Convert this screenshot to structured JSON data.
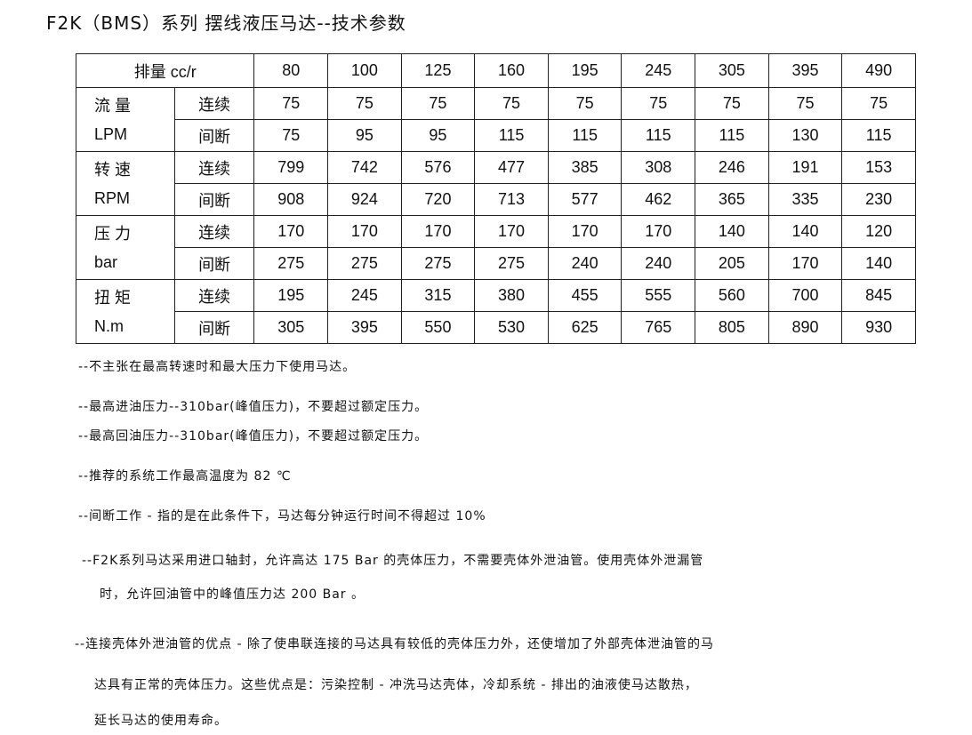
{
  "title": "F2K（BMS）系列 摆线液压马达--技术参数",
  "table": {
    "header_label": "排量 cc/r",
    "displacements": [
      "80",
      "100",
      "125",
      "160",
      "195",
      "245",
      "305",
      "395",
      "490"
    ],
    "groups": [
      {
        "name": "流 量",
        "unit": "LPM",
        "rows": [
          {
            "label": "连续",
            "values": [
              "75",
              "75",
              "75",
              "75",
              "75",
              "75",
              "75",
              "75",
              "75"
            ]
          },
          {
            "label": "间断",
            "values": [
              "75",
              "95",
              "95",
              "115",
              "115",
              "115",
              "115",
              "130",
              "115"
            ]
          }
        ]
      },
      {
        "name": "转 速",
        "unit": "RPM",
        "rows": [
          {
            "label": "连续",
            "values": [
              "799",
              "742",
              "576",
              "477",
              "385",
              "308",
              "246",
              "191",
              "153"
            ]
          },
          {
            "label": "间断",
            "values": [
              "908",
              "924",
              "720",
              "713",
              "577",
              "462",
              "365",
              "335",
              "230"
            ]
          }
        ]
      },
      {
        "name": "压 力",
        "unit": "bar",
        "rows": [
          {
            "label": "连续",
            "values": [
              "170",
              "170",
              "170",
              "170",
              "170",
              "170",
              "140",
              "140",
              "120"
            ]
          },
          {
            "label": "间断",
            "values": [
              "275",
              "275",
              "275",
              "275",
              "240",
              "240",
              "205",
              "170",
              "140"
            ]
          }
        ]
      },
      {
        "name": "扭 矩",
        "unit": "N.m",
        "rows": [
          {
            "label": "连续",
            "values": [
              "195",
              "245",
              "315",
              "380",
              "455",
              "555",
              "560",
              "700",
              "845"
            ]
          },
          {
            "label": "间断",
            "values": [
              "305",
              "395",
              "550",
              "530",
              "625",
              "765",
              "805",
              "890",
              "930"
            ]
          }
        ]
      }
    ]
  },
  "notes": [
    "--不主张在最高转速时和最大压力下使用马达。",
    "--最高进油压力--310bar(峰值压力)，不要超过额定压力。",
    "--最高回油压力--310bar(峰值压力)，不要超过额定压力。",
    "--推荐的系统工作最高温度为 82 ℃",
    "--间断工作 - 指的是在此条件下，马达每分钟运行时间不得超过 10%",
    "--F2K系列马达采用进口轴封，允许高达 175 Bar 的壳体压力，不需要壳体外泄油管。使用壳体外泄漏管",
    "时，允许回油管中的峰值压力达 200 Bar 。",
    "--连接壳体外泄油管的优点 - 除了使串联连接的马达具有较低的壳体压力外，还使增加了外部壳体泄油管的马",
    "达具有正常的壳体压力。这些优点是：污染控制 - 冲洗马达壳体，冷却系统 - 排出的油液使马达散热，",
    "延长马达的使用寿命。"
  ]
}
